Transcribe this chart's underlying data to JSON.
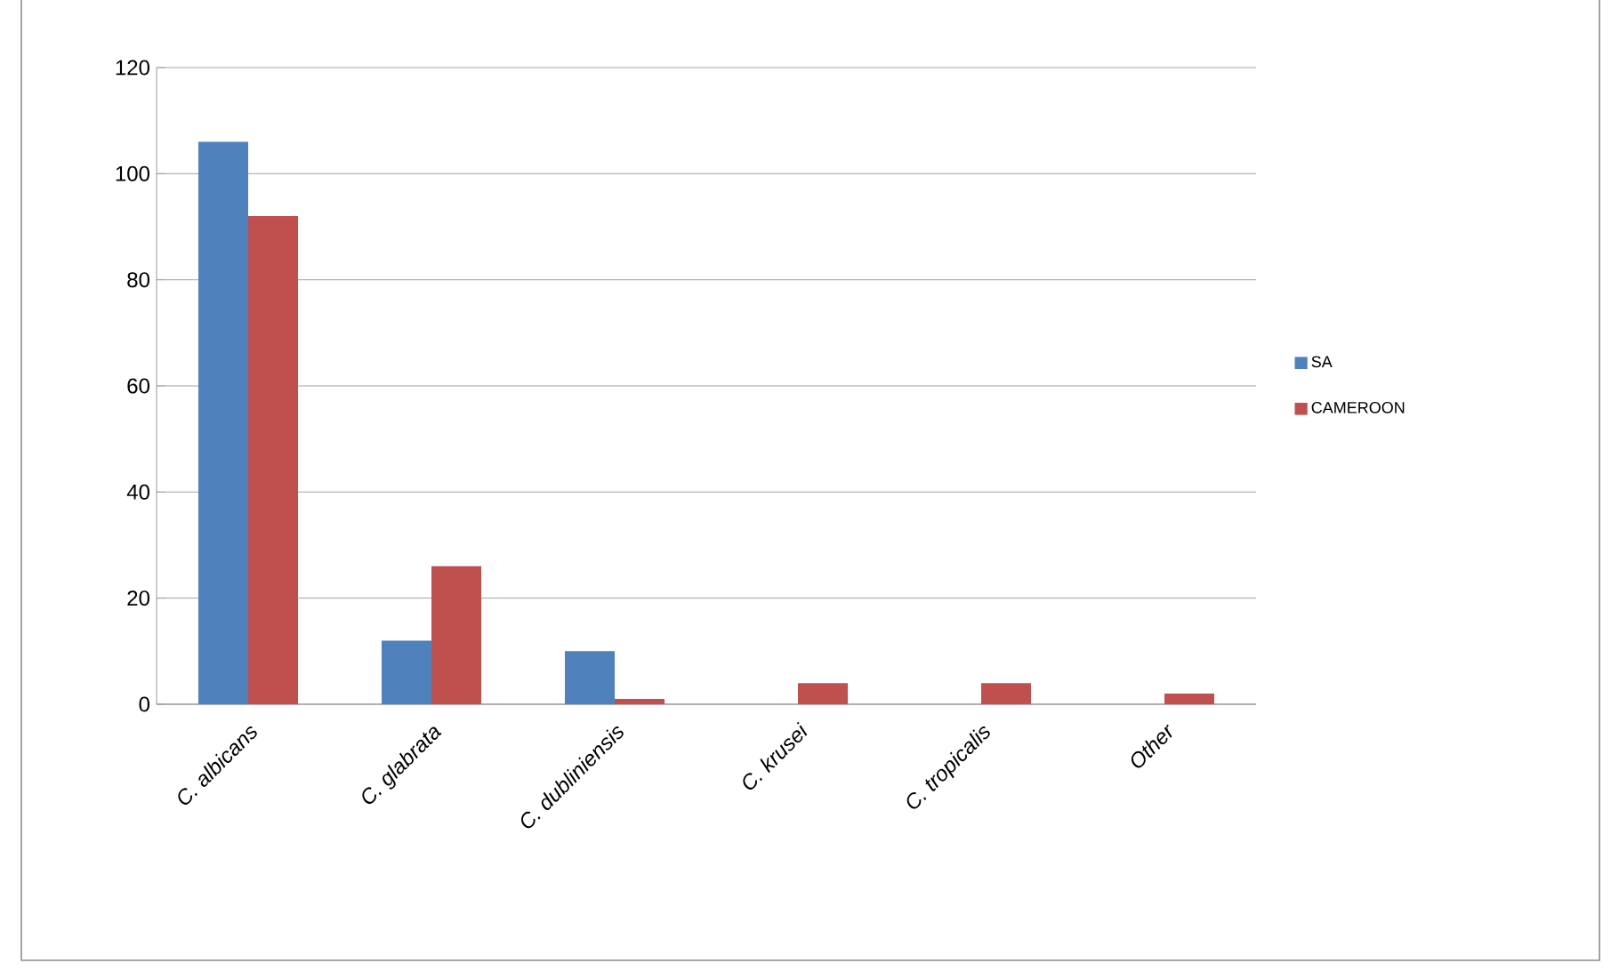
{
  "chart_data": {
    "type": "bar",
    "categories": [
      "C. albicans",
      "C. glabrata",
      "C. dubliniensis",
      "C. krusei",
      "C. tropicalis",
      "Other"
    ],
    "series": [
      {
        "name": "SA",
        "color": "#4f81bd",
        "values": [
          106,
          12,
          10,
          0,
          0,
          0
        ]
      },
      {
        "name": "CAMEROON",
        "color": "#c0504d",
        "values": [
          92,
          26,
          1,
          4,
          4,
          2
        ]
      }
    ],
    "ylim": [
      0,
      120
    ],
    "yticks": [
      0,
      20,
      40,
      60,
      80,
      100,
      120
    ],
    "grid": "y",
    "legend": "right"
  }
}
